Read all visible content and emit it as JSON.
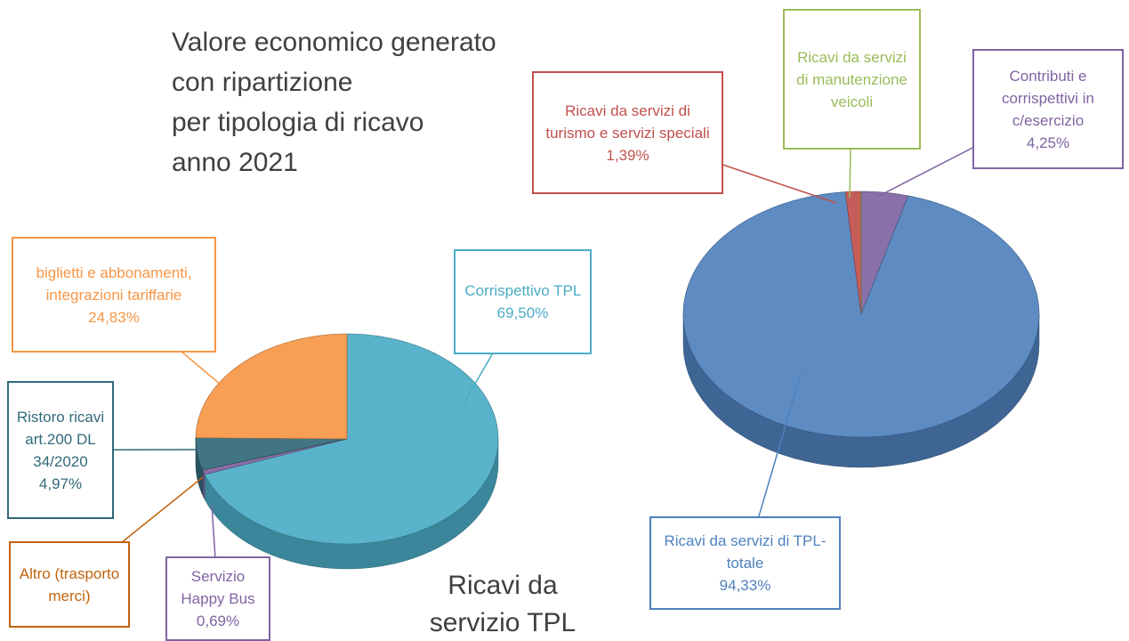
{
  "title": [
    "Valore economico generato",
    "con ripartizione",
    "per tipologia di ricavo",
    "anno 2021"
  ],
  "chart_data": [
    {
      "type": "pie",
      "title": "Ricavi da servizio TPL",
      "categories": [
        "Corrispettivo TPL",
        "Servizio Happy Bus",
        "Altro (trasporto merci)",
        "Ristoro ricavi art.200 DL 34/2020",
        "biglietti e abbonamenti, integrazioni tariffarie"
      ],
      "values": [
        69.5,
        0.69,
        0.01,
        4.97,
        24.83
      ],
      "value_labels": [
        "69,50%",
        "0,69%",
        null,
        "4,97%",
        "24,83%"
      ],
      "colors": [
        "#4bacc6",
        "#8064a2",
        "#c0640f",
        "#31697a",
        "#f79646"
      ]
    },
    {
      "type": "pie",
      "categories": [
        "Contributi e corrispettivi in c/esercizio",
        "Ricavi da servizi di TPL-totale",
        "Ricavi da servizi di turismo e servizi speciali",
        "Ricavi da servizi di manutenzione veicoli"
      ],
      "values": [
        4.25,
        94.33,
        1.39,
        0.03
      ],
      "value_labels": [
        "4,25%",
        "94,33%",
        "1,39%",
        null
      ],
      "colors": [
        "#8064a2",
        "#4f81bd",
        "#c0504d",
        "#9bbb59"
      ]
    }
  ]
}
